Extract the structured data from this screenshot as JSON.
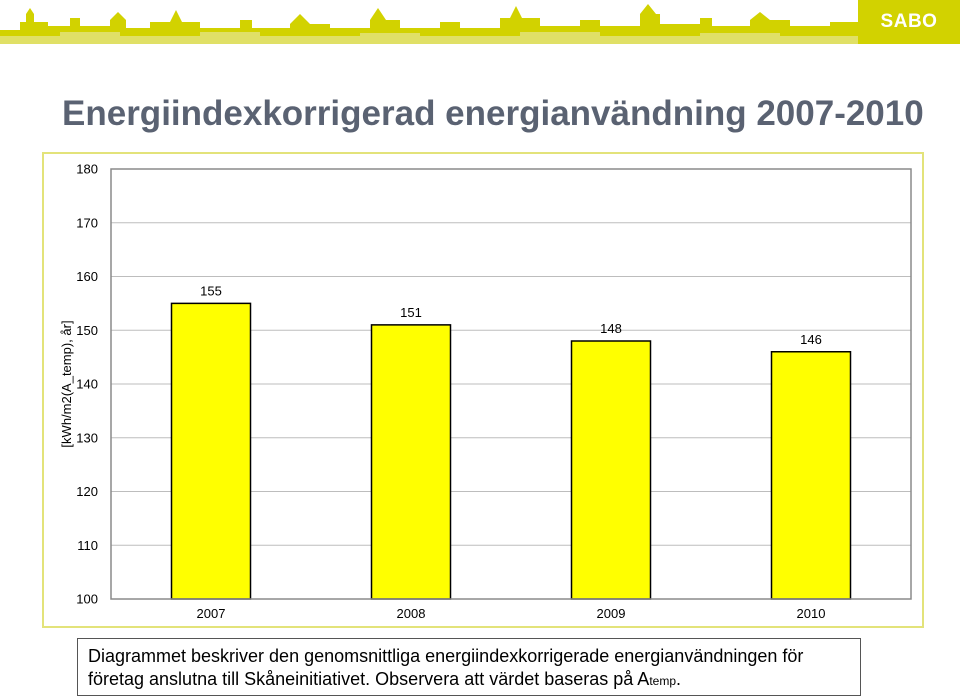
{
  "header": {
    "logo_text": "SABO",
    "brand_color": "#d2d200"
  },
  "title": "Energiindexkorrigerad energianvändning 2007-2010",
  "chart_data": {
    "type": "bar",
    "title": "",
    "xlabel": "",
    "ylabel": "[kWh/m2(A_temp), år]",
    "categories": [
      "2007",
      "2008",
      "2009",
      "2010"
    ],
    "values": [
      155,
      151,
      148,
      146
    ],
    "data_labels": [
      "155",
      "151",
      "148",
      "146"
    ],
    "ylim": [
      100,
      180
    ],
    "yticks": [
      100,
      110,
      120,
      130,
      140,
      150,
      160,
      170,
      180
    ],
    "grid": true,
    "bar_color": "#ffff00",
    "legend": "none"
  },
  "caption": {
    "text": "Diagrammet beskriver den genomsnittliga energiindexkorrigerade energianvändningen för företag anslutna till Skåneinitiativet. Observera att värdet baseras på A",
    "subscript": "temp",
    "end": "."
  }
}
